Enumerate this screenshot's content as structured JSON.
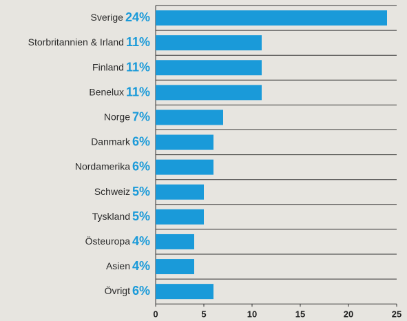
{
  "chart_data": {
    "type": "bar",
    "orientation": "horizontal",
    "categories": [
      "Sverige",
      "Storbritannien & Irland",
      "Finland",
      "Benelux",
      "Norge",
      "Danmark",
      "Nordamerika",
      "Schweiz",
      "Tyskland",
      "Östeuropa",
      "Asien",
      "Övrigt"
    ],
    "values": [
      24,
      11,
      11,
      11,
      7,
      6,
      6,
      5,
      5,
      4,
      4,
      6
    ],
    "value_labels": [
      "24%",
      "11%",
      "11%",
      "11%",
      "7%",
      "6%",
      "6%",
      "5%",
      "5%",
      "4%",
      "4%",
      "6%"
    ],
    "color": "#1a9ad9",
    "xlim": [
      0,
      25
    ],
    "xticks": [
      0,
      5,
      10,
      15,
      20,
      25
    ]
  }
}
